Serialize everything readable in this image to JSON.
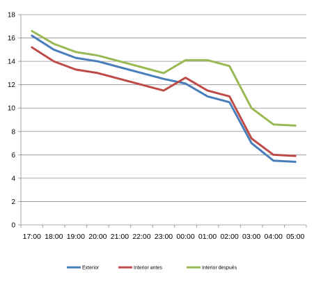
{
  "chart_data": {
    "type": "line",
    "title": "",
    "xlabel": "",
    "ylabel": "",
    "categories": [
      "17:00",
      "18:00",
      "19:00",
      "20:00",
      "21:00",
      "22:00",
      "23:00",
      "00:00",
      "01:00",
      "02:00",
      "03:00",
      "04:00",
      "05:00"
    ],
    "ylim": [
      0,
      18
    ],
    "yticks": [
      0,
      2,
      4,
      6,
      8,
      10,
      12,
      14,
      16,
      18
    ],
    "grid": true,
    "legend_position": "bottom",
    "series": [
      {
        "name": "Exterior",
        "color": "#4A7EBB",
        "values": [
          16.2,
          15.0,
          14.3,
          14.0,
          13.5,
          13.0,
          12.5,
          12.1,
          11.0,
          10.5,
          7.0,
          5.5,
          5.4
        ]
      },
      {
        "name": "Interior antes",
        "color": "#BE4B48",
        "values": [
          15.2,
          14.0,
          13.3,
          13.0,
          12.5,
          12.0,
          11.5,
          12.6,
          11.5,
          11.0,
          7.4,
          6.0,
          5.9
        ]
      },
      {
        "name": "Interior después",
        "color": "#98B954",
        "values": [
          16.6,
          15.5,
          14.8,
          14.5,
          14.0,
          13.5,
          13.0,
          14.1,
          14.1,
          13.6,
          10.0,
          8.6,
          8.5
        ]
      }
    ]
  }
}
